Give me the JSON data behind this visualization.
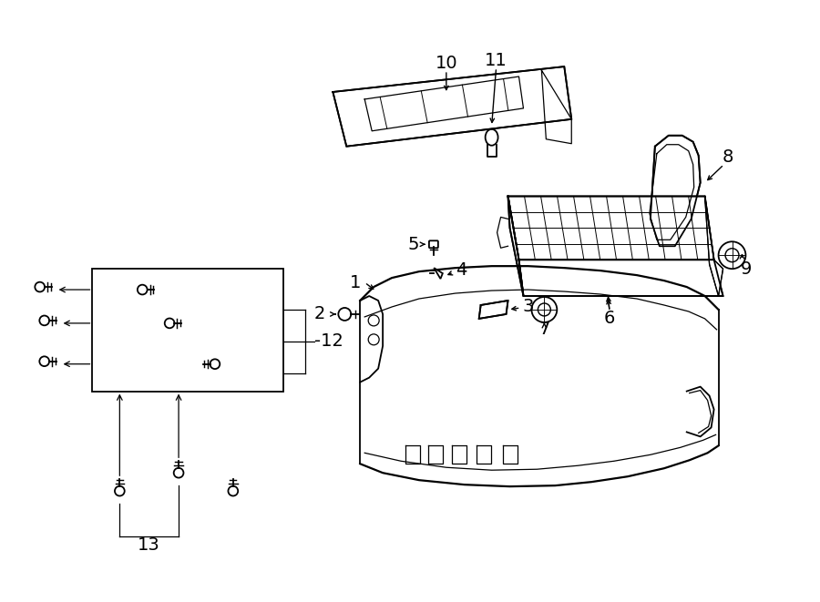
{
  "bg_color": "#ffffff",
  "line_color": "#000000",
  "fig_width": 9.0,
  "fig_height": 6.61,
  "dpi": 100,
  "label_fontsize": 14
}
